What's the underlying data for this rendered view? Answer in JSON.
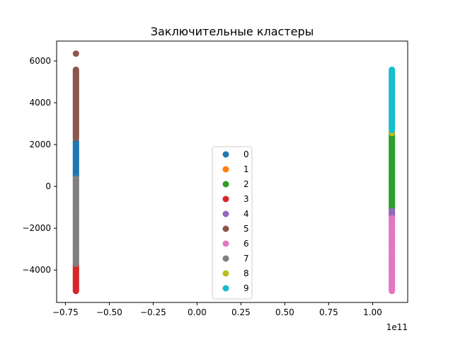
{
  "chart_data": {
    "type": "scatter",
    "title": "Заключительные кластеры",
    "xlabel": "",
    "ylabel": "",
    "x_offset_text": "1e11",
    "xlim": [
      -0.8,
      1.2
    ],
    "ylim": [
      -5550,
      6950
    ],
    "grid": false,
    "legend_position": "lower-center",
    "x_ticks": [
      -0.75,
      -0.5,
      -0.25,
      0.0,
      0.25,
      0.5,
      0.75,
      1.0
    ],
    "x_tick_labels": [
      "−0.75",
      "−0.50",
      "−0.25",
      "0.00",
      "0.25",
      "0.50",
      "0.75",
      "1.00"
    ],
    "y_ticks": [
      -4000,
      -2000,
      0,
      2000,
      4000,
      6000
    ],
    "y_tick_labels": [
      "−4000",
      "−2000",
      "0",
      "2000",
      "4000",
      "6000"
    ],
    "series": [
      {
        "name": "0",
        "color": "#1f77b4",
        "x": [
          -0.69,
          -0.69
        ],
        "y_range": [
          450,
          2200
        ],
        "outliers": []
      },
      {
        "name": "1",
        "color": "#ff7f0e",
        "x": [
          -0.69
        ],
        "y_range": null,
        "outliers": []
      },
      {
        "name": "2",
        "color": "#2ca02c",
        "x": [
          1.11
        ],
        "y_range": [
          -1150,
          2600
        ],
        "outliers": []
      },
      {
        "name": "3",
        "color": "#d62728",
        "x": [
          -0.69
        ],
        "y_range": [
          -5000,
          -3700
        ],
        "outliers": []
      },
      {
        "name": "4",
        "color": "#9467bd",
        "x": [
          1.11
        ],
        "y_range": [
          -1450,
          -1150
        ],
        "outliers": []
      },
      {
        "name": "5",
        "color": "#8c564b",
        "x": [
          -0.69
        ],
        "y_range": [
          2300,
          5600
        ],
        "outliers": [
          [
            -0.69,
            6350
          ]
        ]
      },
      {
        "name": "6",
        "color": "#e377c2",
        "x": [
          1.11
        ],
        "y_range": [
          -5000,
          -1500
        ],
        "outliers": []
      },
      {
        "name": "7",
        "color": "#7f7f7f",
        "x": [
          -0.69
        ],
        "y_range": [
          -3700,
          400
        ],
        "outliers": []
      },
      {
        "name": "8",
        "color": "#bcbd22",
        "x": [
          1.11
        ],
        "y_range": [
          2550,
          2700
        ],
        "outliers": []
      },
      {
        "name": "9",
        "color": "#17becf",
        "x": [
          1.11
        ],
        "y_range": [
          2700,
          5600
        ],
        "outliers": []
      }
    ]
  }
}
